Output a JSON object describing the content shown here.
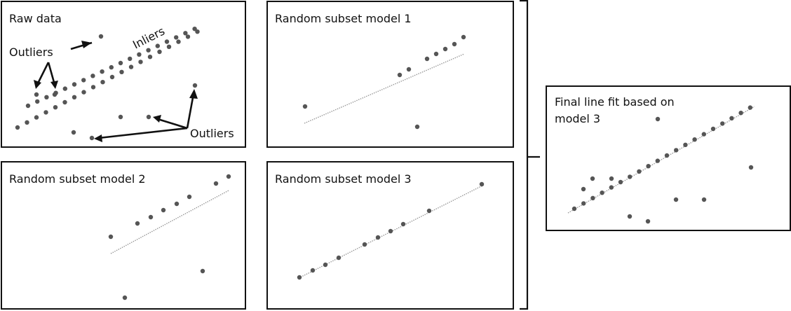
{
  "panels": {
    "raw": {
      "title": "Raw data",
      "inliers_label": "Inliers",
      "outliers_label_left": "Outliers",
      "outliers_label_right": "Outliers"
    },
    "model1": {
      "title": "Random subset model 1"
    },
    "model2": {
      "title": "Random subset model 2"
    },
    "model3": {
      "title": "Random subset model 3"
    },
    "final": {
      "title_line1": "Final line fit based on",
      "title_line2": "model 3"
    }
  },
  "colors": {
    "point": "#555555",
    "fit_line": "#9a9a9a",
    "border": "#111111"
  }
}
